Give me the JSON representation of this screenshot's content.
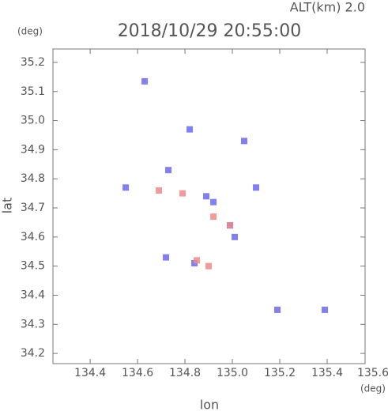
{
  "chart_data": {
    "type": "scatter",
    "title": "2018/10/29 20:55:00",
    "subtitle": "ALT(km) 2.0",
    "y_unit": "(deg)",
    "x_unit": "(deg)",
    "x_label": "lon",
    "y_label": "lat",
    "xlim": [
      134.243,
      135.56
    ],
    "ylim": [
      34.165,
      35.246
    ],
    "xticks": [
      134.4,
      134.6,
      134.8,
      {
        "value": 135,
        "label": "135.0"
      },
      135.2,
      135.4,
      135.6
    ],
    "yticks": [
      34.2,
      34.3,
      34.4,
      34.5,
      34.6,
      34.7,
      34.8,
      34.9,
      {
        "value": 35,
        "label": "35.0"
      },
      35.1,
      35.2
    ],
    "series": [
      {
        "color": "#6a6aee",
        "x": [
          134.63,
          134.73,
          134.55,
          134.89,
          134.99,
          134.72,
          134.84,
          135.39,
          134.82,
          135.05,
          135.1,
          135.19,
          134.92,
          135.01
        ],
        "y": [
          35.135,
          34.83,
          34.77,
          34.74,
          34.64,
          34.53,
          34.51,
          34.35,
          34.97,
          34.93,
          34.77,
          34.35,
          34.72,
          34.6
        ]
      },
      {
        "color": "#ee8a8a",
        "x": [
          134.69,
          134.79,
          134.92,
          134.85,
          134.99,
          134.9
        ],
        "y": [
          34.76,
          34.75,
          34.67,
          34.52,
          34.64,
          34.5
        ]
      }
    ]
  }
}
